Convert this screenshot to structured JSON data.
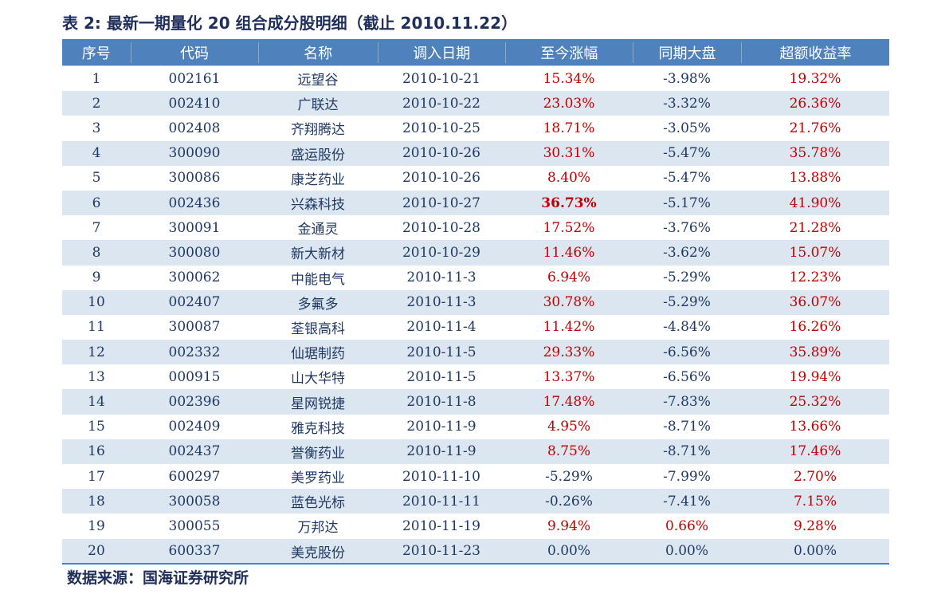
{
  "title": "表 2: 最新一期量化 20 组合成分股明细（截止 2010.11.22）",
  "headers": [
    "序号",
    "代码",
    "名称",
    "调入日期",
    "至今涨幅",
    "同期大盘",
    "超额收益率"
  ],
  "rows": [
    {
      "no": "1",
      "code": "002161",
      "name": "远望谷",
      "date": "2010-10-21",
      "gain": "15.34%",
      "market": "-3.98%",
      "excess": "19.32%"
    },
    {
      "no": "2",
      "code": "002410",
      "name": "广联达",
      "date": "2010-10-22",
      "gain": "23.03%",
      "market": "-3.32%",
      "excess": "26.36%"
    },
    {
      "no": "3",
      "code": "002408",
      "name": "齐翔腾达",
      "date": "2010-10-25",
      "gain": "18.71%",
      "market": "-3.05%",
      "excess": "21.76%"
    },
    {
      "no": "4",
      "code": "300090",
      "name": "盛运股份",
      "date": "2010-10-26",
      "gain": "30.31%",
      "market": "-5.47%",
      "excess": "35.78%"
    },
    {
      "no": "5",
      "code": "300086",
      "name": "康芝药业",
      "date": "2010-10-26",
      "gain": "8.40%",
      "market": "-5.47%",
      "excess": "13.88%"
    },
    {
      "no": "6",
      "code": "002436",
      "name": "兴森科技",
      "date": "2010-10-27",
      "gain": "36.73%",
      "market": "-5.17%",
      "excess": "41.90%"
    },
    {
      "no": "7",
      "code": "300091",
      "name": "金通灵",
      "date": "2010-10-28",
      "gain": "17.52%",
      "market": "-3.76%",
      "excess": "21.28%"
    },
    {
      "no": "8",
      "code": "300080",
      "name": "新大新材",
      "date": "2010-10-29",
      "gain": "11.46%",
      "market": "-3.62%",
      "excess": "15.07%"
    },
    {
      "no": "9",
      "code": "300062",
      "name": "中能电气",
      "date": "2010-11-3",
      "gain": "6.94%",
      "market": "-5.29%",
      "excess": "12.23%"
    },
    {
      "no": "10",
      "code": "002407",
      "name": "多氟多",
      "date": "2010-11-3",
      "gain": "30.78%",
      "market": "-5.29%",
      "excess": "36.07%"
    },
    {
      "no": "11",
      "code": "300087",
      "name": "荃银高科",
      "date": "2010-11-4",
      "gain": "11.42%",
      "market": "-4.84%",
      "excess": "16.26%"
    },
    {
      "no": "12",
      "code": "002332",
      "name": "仙琚制药",
      "date": "2010-11-5",
      "gain": "29.33%",
      "market": "-6.56%",
      "excess": "35.89%"
    },
    {
      "no": "13",
      "code": "000915",
      "name": "山大华特",
      "date": "2010-11-5",
      "gain": "13.37%",
      "market": "-6.56%",
      "excess": "19.94%"
    },
    {
      "no": "14",
      "code": "002396",
      "name": "星网锐捷",
      "date": "2010-11-8",
      "gain": "17.48%",
      "market": "-7.83%",
      "excess": "25.32%"
    },
    {
      "no": "15",
      "code": "002409",
      "name": "雅克科技",
      "date": "2010-11-9",
      "gain": "4.95%",
      "market": "-8.71%",
      "excess": "13.66%"
    },
    {
      "no": "16",
      "code": "002437",
      "name": "誉衡药业",
      "date": "2010-11-9",
      "gain": "8.75%",
      "market": "-8.71%",
      "excess": "17.46%"
    },
    {
      "no": "17",
      "code": "600297",
      "name": "美罗药业",
      "date": "2010-11-10",
      "gain": "-5.29%",
      "market": "-7.99%",
      "excess": "2.70%"
    },
    {
      "no": "18",
      "code": "300058",
      "name": "蓝色光标",
      "date": "2010-11-11",
      "gain": "-0.26%",
      "market": "-7.41%",
      "excess": "7.15%"
    },
    {
      "no": "19",
      "code": "300055",
      "name": "万邦达",
      "date": "2010-11-19",
      "gain": "9.94%",
      "market": "0.66%",
      "excess": "9.28%"
    },
    {
      "no": "20",
      "code": "600337",
      "name": "美克股份",
      "date": "2010-11-23",
      "gain": "0.00%",
      "market": "0.00%",
      "excess": "0.00%"
    }
  ],
  "source": "数据来源：国海证券研究所",
  "colors": {
    "header_bg": "#4f81bd",
    "alt_row": "#dce6f1",
    "positive": "#c00000",
    "text": "#1f3864"
  }
}
